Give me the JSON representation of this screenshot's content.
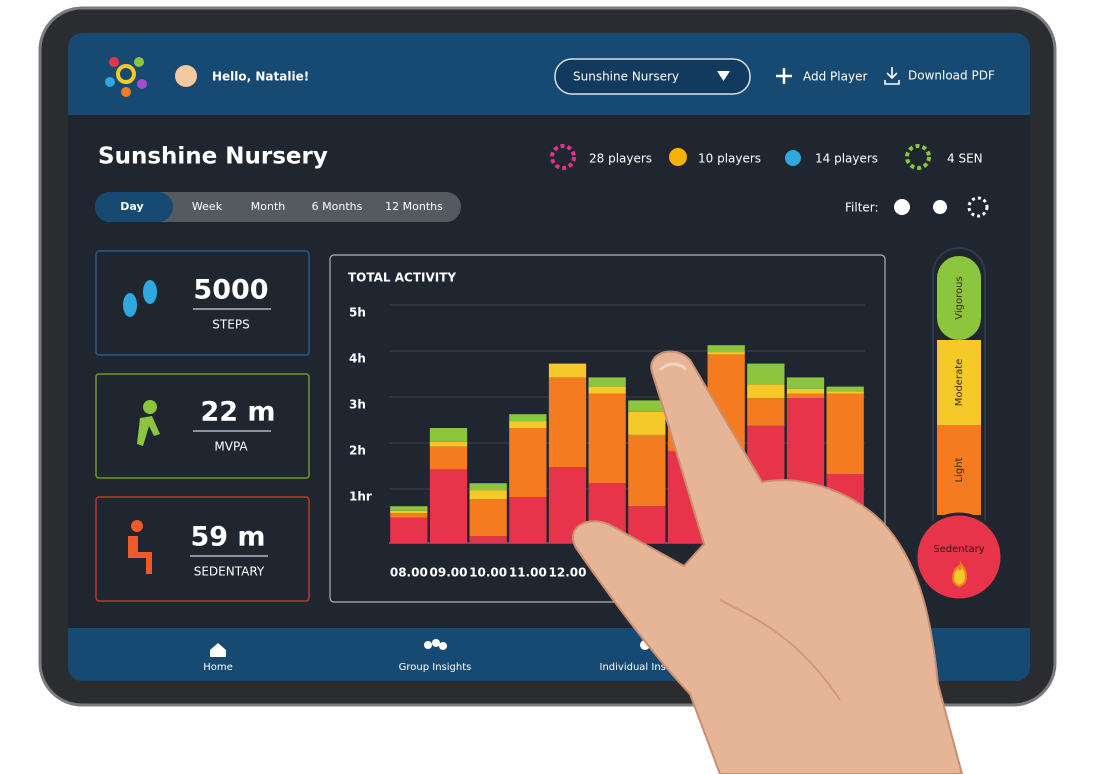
{
  "header": {
    "greeting": "Hello, Natalie!",
    "dropdown": "Sunshine Nursery",
    "add_player": "Add Player",
    "download": "Download PDF"
  },
  "title": "Sunshine Nursery",
  "stats": [
    "28 players",
    "10 players",
    "14 players",
    "4 SEN"
  ],
  "tabs": [
    "Day",
    "Week",
    "Month",
    "6 Months",
    "12 Months"
  ],
  "filter_label": "Filter:",
  "cards": [
    {
      "value": "5000",
      "label": "STEPS"
    },
    {
      "value": "22 m",
      "label": "MVPA"
    },
    {
      "value": "59 m",
      "label": "SEDENTARY"
    }
  ],
  "chart_data": {
    "type": "bar",
    "stacked": true,
    "title": "TOTAL ACTIVITY",
    "categories": [
      "08.00",
      "09.00",
      "10.00",
      "11.00",
      "12.00",
      null,
      null,
      null,
      null,
      null,
      null,
      null
    ],
    "series": [
      {
        "name": "Sedentary",
        "color": "#e8344a",
        "values": [
          0.55,
          1.6,
          0.15,
          1.0,
          1.65,
          1.3,
          0.8,
          2.0,
          1.5,
          2.55,
          3.15,
          1.5
        ]
      },
      {
        "name": "Light",
        "color": "#f47b20",
        "values": [
          0.1,
          0.5,
          0.8,
          1.5,
          1.95,
          1.95,
          1.55,
          0.7,
          2.6,
          0.6,
          0.1,
          1.75
        ]
      },
      {
        "name": "Moderate",
        "color": "#f5c928",
        "values": [
          0.05,
          0.1,
          0.2,
          0.15,
          0.3,
          0.15,
          0.5,
          0.2,
          0.05,
          0.3,
          0.1,
          0.05
        ]
      },
      {
        "name": "Vigorous",
        "color": "#8cc63f",
        "values": [
          0.1,
          0.3,
          0.15,
          0.15,
          0,
          0.2,
          0.25,
          0.1,
          0.15,
          0.45,
          0.25,
          0.1
        ]
      }
    ],
    "ylim": [
      0,
      5
    ],
    "yticks": [
      {
        "value": 1,
        "label": "1hr"
      },
      {
        "value": 2,
        "label": "2h"
      },
      {
        "value": 3,
        "label": "3h"
      },
      {
        "value": 4,
        "label": "4h"
      },
      {
        "value": 5,
        "label": "5h"
      }
    ],
    "grid": true
  },
  "nav": [
    "Home",
    "Group Insights",
    "Individual Insights"
  ]
}
